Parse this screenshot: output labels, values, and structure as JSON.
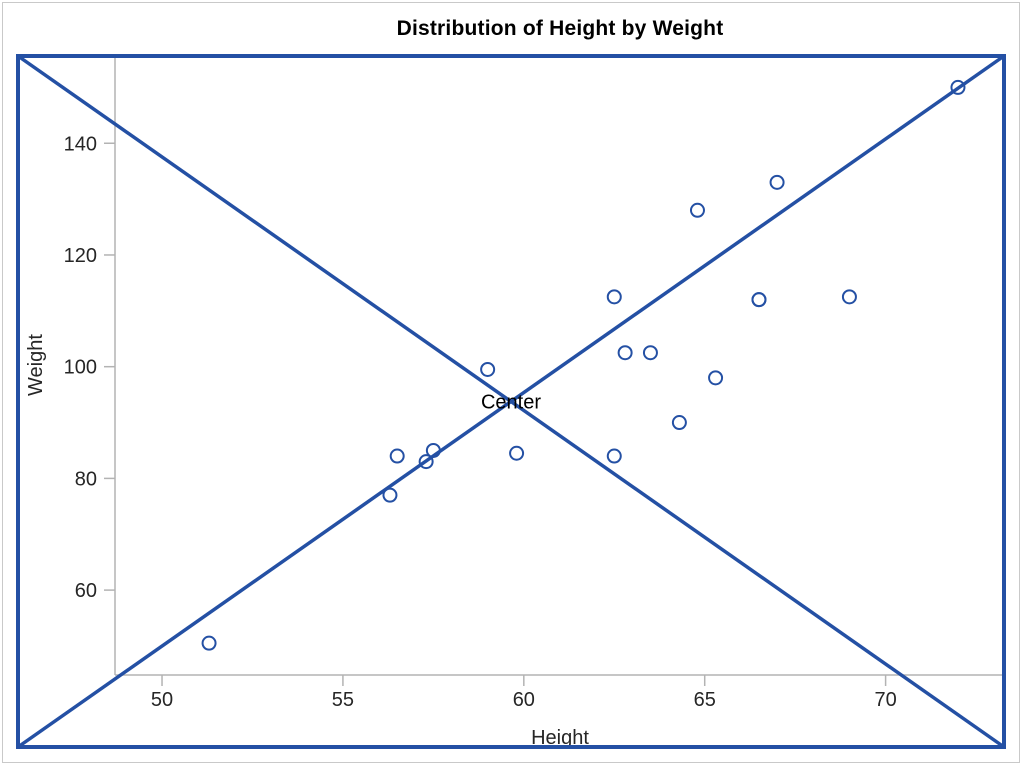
{
  "figure": {
    "title": "Distribution of Height by Weight",
    "border_color": "#2450a4",
    "page_edge_color": "#c9c9c9",
    "background": "#ffffff"
  },
  "chart_data": {
    "type": "scatter",
    "title": "Distribution of Height by Weight",
    "xlabel": "Height",
    "ylabel": "Weight",
    "xlim": [
      48.7,
      73.3
    ],
    "ylim": [
      44.8,
      155.8
    ],
    "xticks": [
      50,
      55,
      60,
      65,
      70
    ],
    "yticks": [
      60,
      80,
      100,
      120,
      140
    ],
    "grid": false,
    "legend": "none",
    "marker": "open-circle",
    "marker_color": "#2450a4",
    "line_color": "#2450a4",
    "axis_line_color": "#b3b3b3",
    "tick_label_color": "#262626",
    "points": [
      [
        69.0,
        112.5
      ],
      [
        56.5,
        84.0
      ],
      [
        65.3,
        98.0
      ],
      [
        62.8,
        102.5
      ],
      [
        63.5,
        102.5
      ],
      [
        57.3,
        83.0
      ],
      [
        59.8,
        84.5
      ],
      [
        62.5,
        112.5
      ],
      [
        62.5,
        84.0
      ],
      [
        59.0,
        99.5
      ],
      [
        51.3,
        50.5
      ],
      [
        64.3,
        90.0
      ],
      [
        56.3,
        77.0
      ],
      [
        66.5,
        112.0
      ],
      [
        72.0,
        150.0
      ],
      [
        64.8,
        128.0
      ],
      [
        67.0,
        133.0
      ],
      [
        57.5,
        85.0
      ],
      [
        66.5,
        112.0
      ]
    ],
    "reference_lines": [
      {
        "name": "diagonal-descending",
        "from": "frame-top-left",
        "to": "frame-bottom-right"
      },
      {
        "name": "diagonal-ascending",
        "from": "frame-bottom-left",
        "to": "frame-top-right"
      }
    ],
    "annotations": [
      {
        "label": "Center",
        "position": "frame-center"
      }
    ]
  }
}
